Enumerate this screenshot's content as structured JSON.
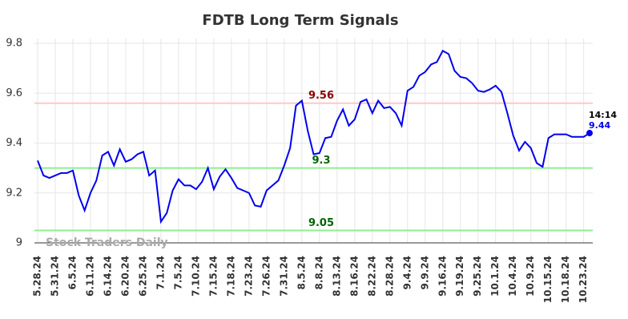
{
  "chart_data": {
    "type": "line",
    "title": "FDTB Long Term Signals",
    "categories": [
      "5.28.24",
      null,
      null,
      "5.31.24",
      null,
      null,
      "6.5.24",
      null,
      null,
      "6.11.24",
      null,
      null,
      "6.14.24",
      null,
      null,
      "6.20.24",
      null,
      null,
      "6.25.24",
      null,
      null,
      "7.1.24",
      null,
      null,
      "7.5.24",
      null,
      null,
      "7.10.24",
      null,
      null,
      "7.15.24",
      null,
      null,
      "7.18.24",
      null,
      null,
      "7.23.24",
      null,
      null,
      "7.26.24",
      null,
      null,
      "7.31.24",
      null,
      null,
      "8.5.24",
      null,
      null,
      "8.8.24",
      null,
      null,
      "8.13.24",
      null,
      null,
      "8.16.24",
      null,
      null,
      "8.22.24",
      null,
      null,
      "8.28.24",
      null,
      null,
      "9.4.24",
      null,
      null,
      "9.9.24",
      null,
      null,
      "9.16.24",
      null,
      null,
      "9.19.24",
      null,
      null,
      "9.25.24",
      null,
      null,
      "10.1.24",
      null,
      null,
      "10.4.24",
      null,
      null,
      "10.9.24",
      null,
      null,
      "10.15.24",
      null,
      null,
      "10.18.24",
      null,
      null,
      "10.23.24",
      null
    ],
    "series": [
      {
        "name": "FDTB",
        "color": "#0000ee",
        "values": [
          9.33,
          9.27,
          9.26,
          9.27,
          9.28,
          9.28,
          9.29,
          9.19,
          9.13,
          9.2,
          9.25,
          9.35,
          9.365,
          9.31,
          9.375,
          9.325,
          9.335,
          9.355,
          9.365,
          9.27,
          9.29,
          9.085,
          9.12,
          9.21,
          9.255,
          9.23,
          9.23,
          9.215,
          9.245,
          9.3,
          9.215,
          9.265,
          9.295,
          9.26,
          9.22,
          9.21,
          9.2,
          9.15,
          9.145,
          9.21,
          9.23,
          9.25,
          9.31,
          9.38,
          9.55,
          9.57,
          9.45,
          9.355,
          9.36,
          9.42,
          9.425,
          9.49,
          9.535,
          9.47,
          9.495,
          9.565,
          9.575,
          9.52,
          9.57,
          9.54,
          9.545,
          9.52,
          9.47,
          9.61,
          9.625,
          9.67,
          9.685,
          9.715,
          9.725,
          9.77,
          9.757,
          9.69,
          9.665,
          9.66,
          9.64,
          9.61,
          9.605,
          9.615,
          9.63,
          9.605,
          9.52,
          9.43,
          9.37,
          9.405,
          9.38,
          9.32,
          9.305,
          9.42,
          9.435,
          9.435,
          9.435,
          9.425,
          9.425,
          9.425,
          9.44
        ]
      }
    ],
    "ylim": [
      9,
      9.8
    ],
    "yticks": [
      9,
      9.2,
      9.4,
      9.6,
      9.8
    ],
    "grid": true,
    "hlines": [
      {
        "value": 9.56,
        "color": "#ffc8c8",
        "label_color": "#8b0000"
      },
      {
        "value": 9.3,
        "color": "#90ee90",
        "label_color": "#006400"
      },
      {
        "value": 9.05,
        "color": "#90ee90",
        "label_color": "#006400"
      }
    ],
    "last_label": {
      "time": "14:14",
      "value": 9.44
    },
    "watermark": "Stock Traders Daily"
  }
}
